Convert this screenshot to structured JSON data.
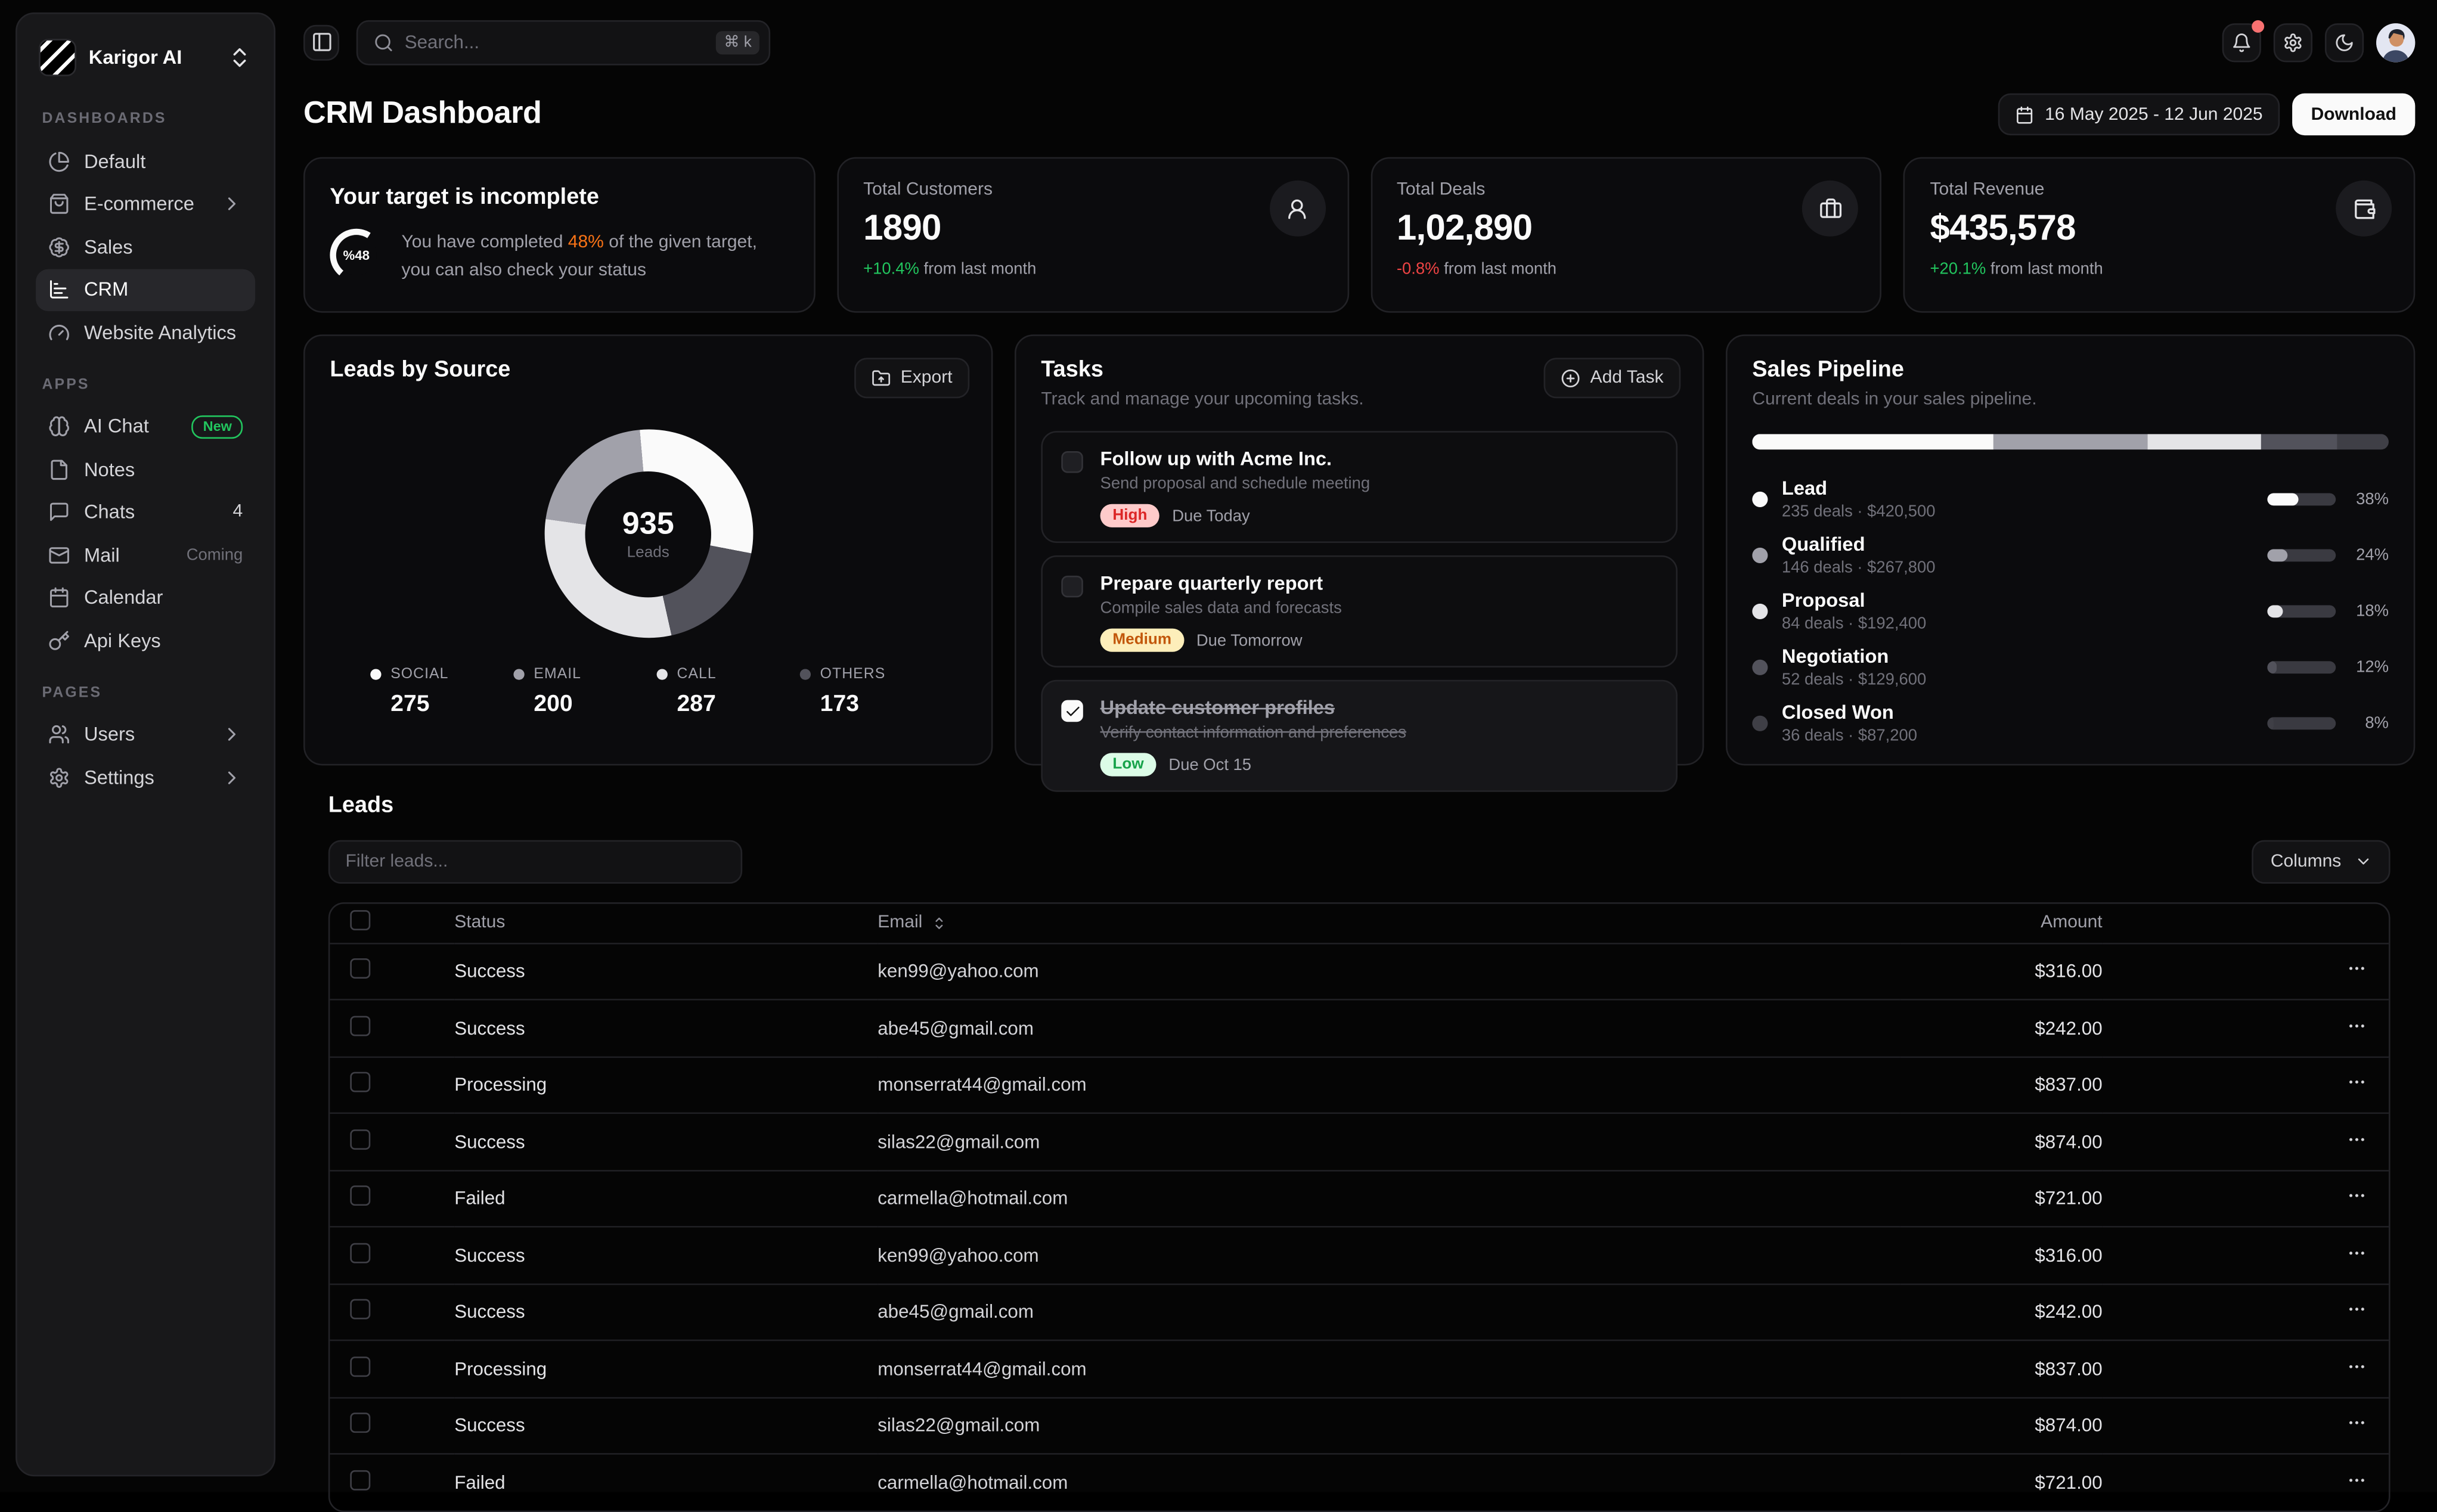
{
  "app": {
    "brand": "Karigor AI"
  },
  "topbar": {
    "search_placeholder": "Search...",
    "shortcut": "⌘ k"
  },
  "sidebar": {
    "sections": [
      {
        "label": "DASHBOARDS",
        "items": [
          {
            "label": "Default",
            "icon": "pie"
          },
          {
            "label": "E-commerce",
            "icon": "bag",
            "chevron": true
          },
          {
            "label": "Sales",
            "icon": "badge-dollar"
          },
          {
            "label": "CRM",
            "icon": "chart",
            "active": true
          },
          {
            "label": "Website Analytics",
            "icon": "gauge"
          }
        ]
      },
      {
        "label": "APPS",
        "items": [
          {
            "label": "AI Chat",
            "icon": "brain",
            "badge": "New"
          },
          {
            "label": "Notes",
            "icon": "file"
          },
          {
            "label": "Chats",
            "icon": "chat",
            "count": "4"
          },
          {
            "label": "Mail",
            "icon": "mail",
            "muted": "Coming"
          },
          {
            "label": "Calendar",
            "icon": "calendar"
          },
          {
            "label": "Api Keys",
            "icon": "key"
          }
        ]
      },
      {
        "label": "PAGES",
        "items": [
          {
            "label": "Users",
            "icon": "users",
            "chevron": true
          },
          {
            "label": "Settings",
            "icon": "gear",
            "chevron": true
          }
        ]
      }
    ]
  },
  "header": {
    "title": "CRM Dashboard",
    "date_range": "16 May 2025 - 12 Jun 2025",
    "download_label": "Download"
  },
  "target_card": {
    "title": "Your target is incomplete",
    "progress_label": "%48",
    "percent": 48,
    "desc_prefix": "You have completed ",
    "desc_highlight": "48%",
    "desc_suffix": " of the given target, you can also check your status",
    "highlight_color": "#f97316",
    "arc_color": "#fafafa"
  },
  "stat_cards": [
    {
      "label": "Total Customers",
      "value": "1890",
      "delta": "+10.4%",
      "delta_color": "#22c55e",
      "delta_suffix": " from last month",
      "icon": "user"
    },
    {
      "label": "Total Deals",
      "value": "1,02,890",
      "delta": "-0.8%",
      "delta_color": "#ef4444",
      "delta_suffix": " from last month",
      "icon": "briefcase"
    },
    {
      "label": "Total Revenue",
      "value": "$435,578",
      "delta": "+20.1%",
      "delta_color": "#22c55e",
      "delta_suffix": " from last month",
      "icon": "wallet"
    }
  ],
  "leads_by_source": {
    "title": "Leads by Source",
    "export_label": "Export",
    "total": "935",
    "total_label": "Leads",
    "ring_start_deg": -5,
    "ring": [
      {
        "source": "SOCIAL",
        "value": 275
      },
      {
        "source": "OTHERS",
        "value": 173
      },
      {
        "source": "CALL",
        "value": 287
      },
      {
        "source": "EMAIL",
        "value": 200
      }
    ],
    "legend": [
      {
        "label": "SOCIAL",
        "value": "275",
        "color": "#fafafa"
      },
      {
        "label": "EMAIL",
        "value": "200",
        "color": "#a1a1aa"
      },
      {
        "label": "CALL",
        "value": "287",
        "color": "#e4e4e7"
      },
      {
        "label": "OTHERS",
        "value": "173",
        "color": "#52525b"
      }
    ]
  },
  "tasks": {
    "title": "Tasks",
    "subtitle": "Track and manage your upcoming tasks.",
    "add_label": "Add Task",
    "items": [
      {
        "title": "Follow up with Acme Inc.",
        "desc": "Send proposal and schedule meeting",
        "priority": "High",
        "priority_bg": "#fecaca",
        "priority_color": "#dc2626",
        "due": "Due Today",
        "done": false
      },
      {
        "title": "Prepare quarterly report",
        "desc": "Compile sales data and forecasts",
        "priority": "Medium",
        "priority_bg": "#fdeeba",
        "priority_color": "#c2570b",
        "due": "Due Tomorrow",
        "done": false
      },
      {
        "title": "Update customer profiles",
        "desc": "Verify contact information and preferences",
        "priority": "Low",
        "priority_bg": "#dcfce7",
        "priority_color": "#16a34a",
        "due": "Due Oct 15",
        "done": true
      }
    ]
  },
  "pipeline": {
    "title": "Sales Pipeline",
    "subtitle": "Current deals in your sales pipeline.",
    "stages": [
      {
        "name": "Lead",
        "sub": "235 deals · $420,500",
        "pct": 38,
        "pct_label": "38%",
        "color": "#fafafa"
      },
      {
        "name": "Qualified",
        "sub": "146 deals · $267,800",
        "pct": 24,
        "pct_label": "24%",
        "color": "#a1a1aa"
      },
      {
        "name": "Proposal",
        "sub": "84 deals · $192,400",
        "pct": 18,
        "pct_label": "18%",
        "color": "#e4e4e7"
      },
      {
        "name": "Negotiation",
        "sub": "52 deals · $129,600",
        "pct": 12,
        "pct_label": "12%",
        "color": "#52525b"
      },
      {
        "name": "Closed Won",
        "sub": "36 deals · $87,200",
        "pct": 8,
        "pct_label": "8%",
        "color": "#3f3f46"
      }
    ]
  },
  "leads_table": {
    "title": "Leads",
    "filter_placeholder": "Filter leads...",
    "columns_label": "Columns",
    "headers": {
      "status": "Status",
      "email": "Email",
      "amount": "Amount"
    },
    "rows": [
      {
        "status": "Success",
        "email": "ken99@yahoo.com",
        "amount": "$316.00"
      },
      {
        "status": "Success",
        "email": "abe45@gmail.com",
        "amount": "$242.00"
      },
      {
        "status": "Processing",
        "email": "monserrat44@gmail.com",
        "amount": "$837.00"
      },
      {
        "status": "Success",
        "email": "silas22@gmail.com",
        "amount": "$874.00"
      },
      {
        "status": "Failed",
        "email": "carmella@hotmail.com",
        "amount": "$721.00"
      },
      {
        "status": "Success",
        "email": "ken99@yahoo.com",
        "amount": "$316.00"
      },
      {
        "status": "Success",
        "email": "abe45@gmail.com",
        "amount": "$242.00"
      },
      {
        "status": "Processing",
        "email": "monserrat44@gmail.com",
        "amount": "$837.00"
      },
      {
        "status": "Success",
        "email": "silas22@gmail.com",
        "amount": "$874.00"
      },
      {
        "status": "Failed",
        "email": "carmella@hotmail.com",
        "amount": "$721.00"
      }
    ]
  }
}
